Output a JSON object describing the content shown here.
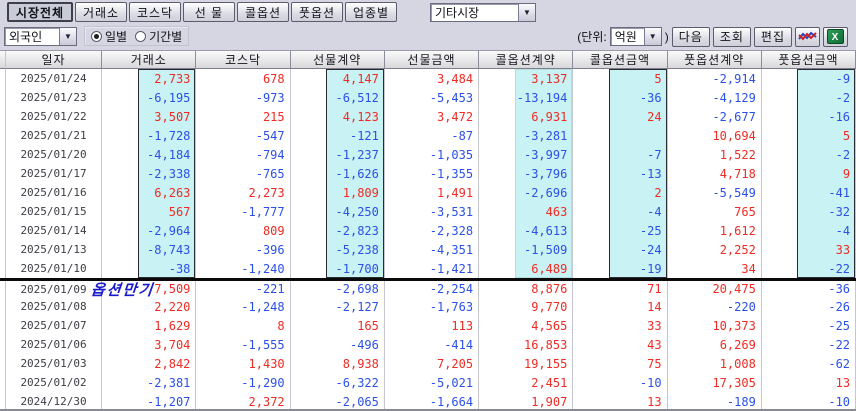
{
  "toolbar": {
    "tabs": [
      {
        "label": "시장전체",
        "active": true
      },
      {
        "label": "거래소",
        "active": false
      },
      {
        "label": "코스닥",
        "active": false
      },
      {
        "label": "선 물",
        "active": false
      },
      {
        "label": "콜옵션",
        "active": false
      },
      {
        "label": "풋옵션",
        "active": false
      },
      {
        "label": "업종별",
        "active": false
      }
    ],
    "market_select": "기타시장",
    "investor_select": "외국인",
    "radio_daily": "일별",
    "radio_period": "기간별",
    "radio_selected": "일별",
    "unit_prefix": "(단위:",
    "unit_value": "억원",
    "unit_suffix": ")",
    "next_button": "다음",
    "query_button": "조회",
    "edit_button": "편집",
    "chart_icon": "chart-lines-icon",
    "excel_icon": "excel-export-icon",
    "excel_glyph": "X",
    "dropdown_glyph": "▼"
  },
  "table": {
    "columns": [
      "일자",
      "거래소",
      "코스닥",
      "선물계약",
      "선물금액",
      "콜옵션계약",
      "콜옵션금액",
      "풋옵션계약",
      "풋옵션금액"
    ],
    "rows": [
      [
        "2025/01/24",
        "2,733",
        "678",
        "4,147",
        "3,484",
        "3,137",
        "5",
        "-2,914",
        "-9"
      ],
      [
        "2025/01/23",
        "-6,195",
        "-973",
        "-6,512",
        "-5,453",
        "-13,194",
        "-36",
        "-4,129",
        "-2"
      ],
      [
        "2025/01/22",
        "3,507",
        "215",
        "4,123",
        "3,472",
        "6,931",
        "24",
        "-2,677",
        "-16"
      ],
      [
        "2025/01/21",
        "-1,728",
        "-547",
        "-121",
        "-87",
        "-3,281",
        "",
        "10,694",
        "5"
      ],
      [
        "2025/01/20",
        "-4,184",
        "-794",
        "-1,237",
        "-1,035",
        "-3,997",
        "-7",
        "1,522",
        "-2"
      ],
      [
        "2025/01/17",
        "-2,338",
        "-765",
        "-1,626",
        "-1,355",
        "-3,796",
        "-13",
        "4,718",
        "9"
      ],
      [
        "2025/01/16",
        "6,263",
        "2,273",
        "1,809",
        "1,491",
        "-2,696",
        "2",
        "-5,549",
        "-41"
      ],
      [
        "2025/01/15",
        "567",
        "-1,777",
        "-4,250",
        "-3,531",
        "463",
        "-4",
        "765",
        "-32"
      ],
      [
        "2025/01/14",
        "-2,964",
        "809",
        "-2,823",
        "-2,328",
        "-4,613",
        "-25",
        "1,612",
        "-4"
      ],
      [
        "2025/01/13",
        "-8,743",
        "-396",
        "-5,238",
        "-4,351",
        "-1,509",
        "-24",
        "2,252",
        "33"
      ],
      [
        "2025/01/10",
        "-38",
        "-1,240",
        "-1,700",
        "-1,421",
        "6,489",
        "-19",
        "34",
        "-22"
      ],
      [
        "2025/01/09",
        "7,509",
        "-221",
        "-2,698",
        "-2,254",
        "8,876",
        "71",
        "20,475",
        "-36"
      ],
      [
        "2025/01/08",
        "2,220",
        "-1,248",
        "-2,127",
        "-1,763",
        "9,770",
        "14",
        "-220",
        "-26"
      ],
      [
        "2025/01/07",
        "1,629",
        "8",
        "165",
        "113",
        "4,565",
        "33",
        "10,373",
        "-25"
      ],
      [
        "2025/01/06",
        "3,704",
        "-1,555",
        "-496",
        "-414",
        "16,853",
        "43",
        "6,269",
        "-22"
      ],
      [
        "2025/01/03",
        "2,842",
        "1,430",
        "8,938",
        "7,205",
        "19,155",
        "75",
        "1,008",
        "-62"
      ],
      [
        "2025/01/02",
        "-2,381",
        "-1,290",
        "-6,322",
        "-5,021",
        "2,451",
        "-10",
        "17,305",
        "13"
      ],
      [
        "2024/12/30",
        "-1,207",
        "2,372",
        "-2,065",
        "-1,664",
        "1,907",
        "13",
        "-189",
        "-10"
      ]
    ],
    "separator_before_row": 11,
    "annotation": {
      "text": "옵션만기",
      "row_index": 11,
      "row_date": "2025/01/09"
    },
    "highlight": {
      "row_count": 11,
      "columns": [
        1,
        3,
        5,
        6,
        8
      ],
      "bordered_columns": [
        1,
        3,
        6,
        8
      ]
    },
    "colors": {
      "positive": "#ef2b24",
      "negative": "#2b50e8",
      "highlight_bg": "#c9f2f4",
      "annotation": "#1a1acd",
      "separator": "#0a0a0a"
    }
  }
}
